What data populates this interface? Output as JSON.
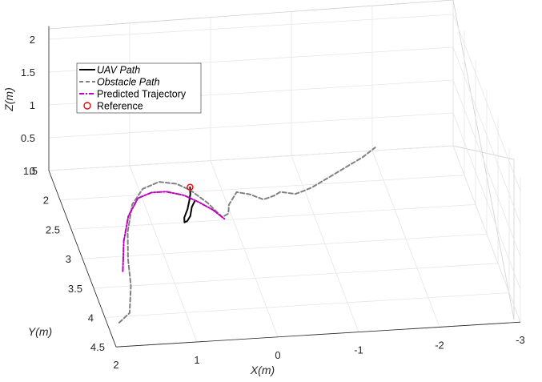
{
  "chart_data": {
    "type": "line",
    "projection": "3d",
    "title": "",
    "xlabel": "X(m)",
    "ylabel": "Y(m)",
    "zlabel": "Z(m)",
    "xlim": [
      -3,
      2
    ],
    "ylim": [
      1.5,
      4.5
    ],
    "zlim": [
      0,
      2.2
    ],
    "grid": true,
    "legend_position": "top-left",
    "x_ticks": [
      "2",
      "1",
      "0",
      "-1",
      "-2",
      "-3"
    ],
    "y_ticks": [
      "1.5",
      "2",
      "2.5",
      "3",
      "3.5",
      "4",
      "4.5"
    ],
    "z_ticks": [
      "0",
      "0.5",
      "1",
      "1.5",
      "2"
    ],
    "series": [
      {
        "name": "UAV Path",
        "color": "#000000",
        "style": "solid",
        "points": [
          [
            0.38,
            2.16
          ],
          [
            0.44,
            2.25
          ],
          [
            0.5,
            2.4
          ],
          [
            0.56,
            2.48
          ],
          [
            0.6,
            2.5
          ],
          [
            0.58,
            2.42
          ],
          [
            0.5,
            2.28
          ],
          [
            0.44,
            2.14
          ],
          [
            0.4,
            2.04
          ],
          [
            0.38,
            1.96
          ],
          [
            0.37,
            1.92
          ]
        ]
      },
      {
        "name": "Obstacle Path",
        "color": "#808080",
        "style": "dashed",
        "points": [
          [
            1.85,
            4.1
          ],
          [
            1.68,
            3.95
          ],
          [
            1.54,
            3.5
          ],
          [
            1.45,
            3.05
          ],
          [
            1.33,
            2.6
          ],
          [
            1.15,
            2.15
          ],
          [
            0.95,
            1.9
          ],
          [
            0.72,
            1.8
          ],
          [
            0.52,
            1.85
          ],
          [
            0.38,
            1.97
          ],
          [
            0.23,
            2.2
          ],
          [
            0.12,
            2.45
          ],
          [
            0.03,
            2.4
          ],
          [
            -0.02,
            2.25
          ],
          [
            -0.17,
            2.05
          ],
          [
            -0.32,
            2.1
          ],
          [
            -0.46,
            2.2
          ],
          [
            -0.6,
            2.15
          ],
          [
            -0.7,
            2.09
          ],
          [
            -0.87,
            2.14
          ],
          [
            -0.98,
            2.1
          ],
          [
            -1.1,
            2.05
          ],
          [
            -1.35,
            1.9
          ],
          [
            -1.6,
            1.75
          ],
          [
            -1.85,
            1.6
          ],
          [
            -2.05,
            1.45
          ]
        ]
      },
      {
        "name": "Predicted Trajectory",
        "color": "#bf00bf",
        "style": "dashdot",
        "points": [
          [
            1.57,
            3.25
          ],
          [
            1.42,
            2.75
          ],
          [
            1.25,
            2.34
          ],
          [
            1.05,
            2.05
          ],
          [
            0.86,
            1.97
          ],
          [
            0.68,
            1.97
          ],
          [
            0.48,
            2.05
          ],
          [
            0.33,
            2.18
          ],
          [
            0.2,
            2.32
          ],
          [
            0.1,
            2.48
          ]
        ]
      },
      {
        "name": "Reference",
        "color": "#ff0000",
        "style": "marker-circle",
        "points": [
          [
            0.37,
            1.92
          ]
        ]
      }
    ]
  }
}
